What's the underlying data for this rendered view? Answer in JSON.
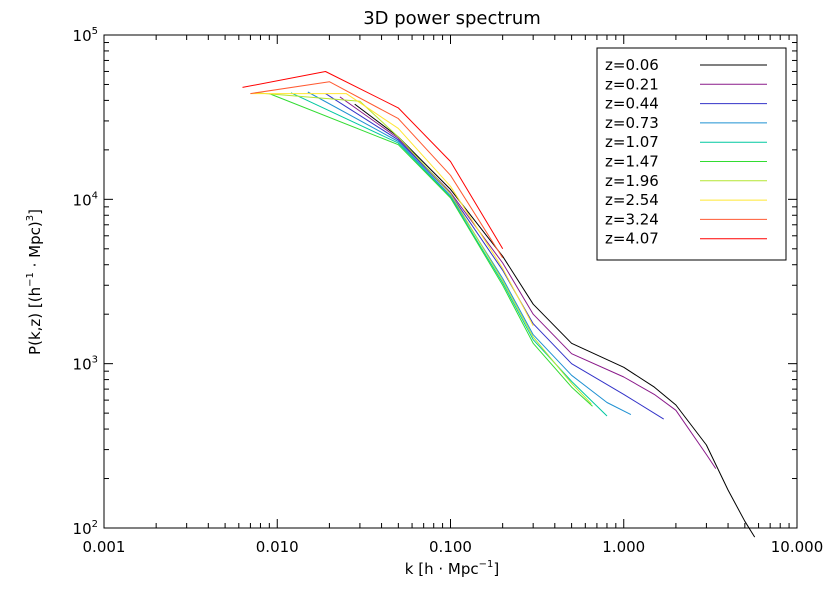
{
  "chart_data": {
    "type": "line",
    "title": "3D power spectrum",
    "x_scale": "log",
    "y_scale": "log",
    "xlim": [
      0.001,
      10
    ],
    "ylim": [
      100,
      100000
    ],
    "xticks": [
      {
        "value": 0.001,
        "label": "0.001"
      },
      {
        "value": 0.01,
        "label": "0.010"
      },
      {
        "value": 0.1,
        "label": "0.100"
      },
      {
        "value": 1,
        "label": "1.000"
      },
      {
        "value": 10,
        "label": "10.000"
      }
    ],
    "yticks": [
      {
        "value": 100,
        "label": "10",
        "exp": "2"
      },
      {
        "value": 1000,
        "label": "10",
        "exp": "3"
      },
      {
        "value": 10000,
        "label": "10",
        "exp": "4"
      },
      {
        "value": 100000,
        "label": "10",
        "exp": "5"
      }
    ],
    "xlabel": {
      "pre": "k  [h ",
      "dot": "·",
      "mid": " Mpc",
      "sup": "−1",
      "post": "]"
    },
    "ylabel": {
      "pre": "P(k,z)  [(h",
      "sup1": "−1",
      "dot": " · ",
      "mid": "Mpc)",
      "sup2": "3",
      "post": "]"
    },
    "legend_position": "top-right",
    "grid": false,
    "series": [
      {
        "name": "z=0.06",
        "color": "#000000",
        "points": [
          [
            0.028,
            38000
          ],
          [
            0.05,
            24000
          ],
          [
            0.1,
            11500
          ],
          [
            0.2,
            4500
          ],
          [
            0.3,
            2300
          ],
          [
            0.5,
            1330
          ],
          [
            1.0,
            950
          ],
          [
            1.5,
            720
          ],
          [
            2.0,
            560
          ],
          [
            3.0,
            320
          ],
          [
            4.0,
            170
          ],
          [
            5.0,
            110
          ],
          [
            5.7,
            88
          ]
        ]
      },
      {
        "name": "z=0.21",
        "color": "#8a1a8a",
        "points": [
          [
            0.023,
            42000
          ],
          [
            0.05,
            23500
          ],
          [
            0.1,
            11000
          ],
          [
            0.2,
            4100
          ],
          [
            0.3,
            2000
          ],
          [
            0.5,
            1150
          ],
          [
            1.0,
            830
          ],
          [
            1.5,
            650
          ],
          [
            2.0,
            520
          ],
          [
            3.0,
            280
          ],
          [
            3.4,
            230
          ]
        ]
      },
      {
        "name": "z=0.44",
        "color": "#3232c8",
        "points": [
          [
            0.019,
            44000
          ],
          [
            0.05,
            23000
          ],
          [
            0.1,
            10800
          ],
          [
            0.2,
            3700
          ],
          [
            0.3,
            1750
          ],
          [
            0.5,
            1000
          ],
          [
            1.0,
            650
          ],
          [
            1.7,
            460
          ]
        ]
      },
      {
        "name": "z=0.73",
        "color": "#1e90d2",
        "points": [
          [
            0.015,
            45000
          ],
          [
            0.05,
            22500
          ],
          [
            0.1,
            10500
          ],
          [
            0.2,
            3300
          ],
          [
            0.3,
            1500
          ],
          [
            0.5,
            850
          ],
          [
            0.8,
            580
          ],
          [
            1.1,
            490
          ]
        ]
      },
      {
        "name": "z=1.07",
        "color": "#00c8a0",
        "points": [
          [
            0.012,
            44500
          ],
          [
            0.05,
            22000
          ],
          [
            0.1,
            10300
          ],
          [
            0.2,
            3100
          ],
          [
            0.3,
            1400
          ],
          [
            0.5,
            780
          ],
          [
            0.8,
            480
          ]
        ]
      },
      {
        "name": "z=1.47",
        "color": "#32dc32",
        "points": [
          [
            0.009,
            44000
          ],
          [
            0.05,
            21500
          ],
          [
            0.1,
            10200
          ],
          [
            0.2,
            3000
          ],
          [
            0.3,
            1330
          ],
          [
            0.5,
            720
          ],
          [
            0.66,
            550
          ]
        ]
      },
      {
        "name": "z=1.96",
        "color": "#b4e632",
        "points": [
          [
            0.0075,
            44500
          ],
          [
            0.03,
            39500
          ],
          [
            0.05,
            24000
          ],
          [
            0.1,
            10800
          ],
          [
            0.2,
            3200
          ],
          [
            0.3,
            1450
          ],
          [
            0.5,
            760
          ],
          [
            0.65,
            570
          ]
        ]
      },
      {
        "name": "z=2.54",
        "color": "#ffe632",
        "points": [
          [
            0.007,
            44000
          ],
          [
            0.025,
            44000
          ],
          [
            0.05,
            27000
          ],
          [
            0.1,
            12000
          ],
          [
            0.2,
            3800
          ],
          [
            0.3,
            1700
          ]
        ]
      },
      {
        "name": "z=3.24",
        "color": "#ff5a32",
        "points": [
          [
            0.007,
            44000
          ],
          [
            0.02,
            52000
          ],
          [
            0.05,
            31000
          ],
          [
            0.1,
            14000
          ],
          [
            0.2,
            4400
          ]
        ]
      },
      {
        "name": "z=4.07",
        "color": "#ff0000",
        "points": [
          [
            0.0063,
            48000
          ],
          [
            0.019,
            60000
          ],
          [
            0.05,
            36000
          ],
          [
            0.1,
            17000
          ],
          [
            0.2,
            5000
          ]
        ]
      }
    ]
  }
}
